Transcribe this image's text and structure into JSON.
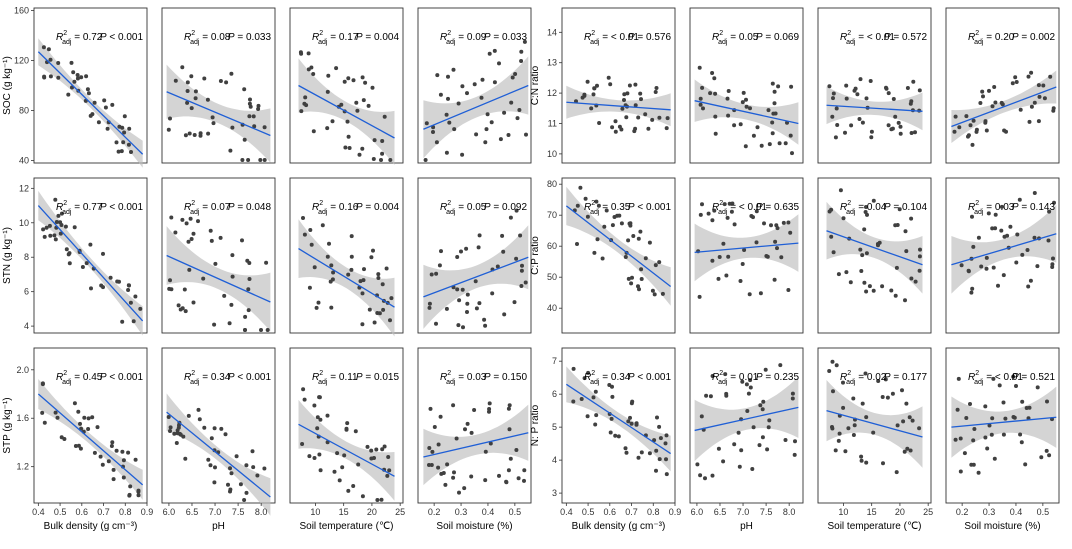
{
  "colors": {
    "line": "#1f5fd6",
    "band": "#bdbdbd",
    "point": "#404040",
    "frame": "#333333"
  },
  "x_axes": [
    {
      "key": "bd",
      "label": "Bulk density (g cm⁻³)",
      "lim": [
        0.38,
        0.9
      ],
      "ticks": [
        0.4,
        0.5,
        0.6,
        0.7,
        0.8,
        0.9
      ],
      "tick_labels": [
        "0.4",
        "0.5",
        "0.6",
        "0.7",
        "0.8",
        "0.9"
      ]
    },
    {
      "key": "ph",
      "label": "pH",
      "lim": [
        5.85,
        8.3
      ],
      "ticks": [
        6.0,
        6.5,
        7.0,
        7.5,
        8.0
      ],
      "tick_labels": [
        "6.0",
        "6.5",
        "7.0",
        "7.5",
        "8.0"
      ]
    },
    {
      "key": "st",
      "label": "Soil temperature (℃)",
      "lim": [
        5.5,
        25.5
      ],
      "ticks": [
        10,
        15,
        20,
        25
      ],
      "tick_labels": [
        "10",
        "15",
        "20",
        "25"
      ]
    },
    {
      "key": "sm",
      "label": "Soil moisture (%)",
      "lim": [
        0.14,
        0.56
      ],
      "ticks": [
        0.2,
        0.3,
        0.4,
        0.5
      ],
      "tick_labels": [
        "0.2",
        "0.3",
        "0.4",
        "0.5"
      ]
    }
  ],
  "chart_data": [
    {
      "type": "scatter",
      "panel_group": "left",
      "row": 0,
      "ylabel": "SOC (g kg⁻¹)",
      "ylim": [
        38,
        162
      ],
      "yticks": [
        40,
        80,
        120,
        160
      ],
      "ytick_labels": [
        "40",
        "80",
        "120",
        "160"
      ],
      "panels": [
        {
          "x_axis": "bd",
          "r2": "0.72",
          "p": "P < 0.001",
          "fit": [
            [
              0.4,
              127
            ],
            [
              0.88,
              45
            ]
          ],
          "ci": 7,
          "seed": 11,
          "n": 42
        },
        {
          "x_axis": "ph",
          "r2": "0.08",
          "p": "P = 0.033",
          "fit": [
            [
              5.95,
              95
            ],
            [
              8.2,
              60
            ]
          ],
          "ci": 14,
          "seed": 12,
          "n": 42
        },
        {
          "x_axis": "st",
          "r2": "0.17",
          "p": "P = 0.004",
          "fit": [
            [
              7,
              100
            ],
            [
              24,
              58
            ]
          ],
          "ci": 14,
          "seed": 13,
          "n": 42
        },
        {
          "x_axis": "sm",
          "r2": "0.09",
          "p": "P = 0.033",
          "fit": [
            [
              0.16,
              65
            ],
            [
              0.55,
              100
            ]
          ],
          "ci": 15,
          "seed": 14,
          "n": 42
        }
      ]
    },
    {
      "type": "scatter",
      "panel_group": "left",
      "row": 1,
      "ylabel": "STN (g kg⁻¹)",
      "ylim": [
        3.6,
        12.6
      ],
      "yticks": [
        4,
        6,
        8,
        10,
        12
      ],
      "ytick_labels": [
        "4",
        "6",
        "8",
        "10",
        "12"
      ],
      "panels": [
        {
          "x_axis": "bd",
          "r2": "0.77",
          "p": "P < 0.001",
          "fit": [
            [
              0.4,
              11
            ],
            [
              0.88,
              4.3
            ]
          ],
          "ci": 0.55,
          "seed": 21,
          "n": 42
        },
        {
          "x_axis": "ph",
          "r2": "0.07",
          "p": "P = 0.048",
          "fit": [
            [
              5.95,
              8.1
            ],
            [
              8.2,
              5.4
            ]
          ],
          "ci": 1.1,
          "seed": 22,
          "n": 42
        },
        {
          "x_axis": "st",
          "r2": "0.16",
          "p": "P = 0.004",
          "fit": [
            [
              7,
              8.5
            ],
            [
              24,
              5.1
            ]
          ],
          "ci": 1.1,
          "seed": 23,
          "n": 42
        },
        {
          "x_axis": "sm",
          "r2": "0.05",
          "p": "P = 0.092",
          "fit": [
            [
              0.16,
              5.7
            ],
            [
              0.55,
              8.0
            ]
          ],
          "ci": 1.2,
          "seed": 24,
          "n": 42
        }
      ]
    },
    {
      "type": "scatter",
      "panel_group": "left",
      "row": 2,
      "ylabel": "STP (g kg⁻¹)",
      "ylim": [
        0.9,
        2.18
      ],
      "yticks": [
        1.2,
        1.6,
        2.0
      ],
      "ytick_labels": [
        "1.2",
        "1.6",
        "2.0"
      ],
      "panels": [
        {
          "x_axis": "bd",
          "r2": "0.45",
          "p": "P < 0.001",
          "fit": [
            [
              0.4,
              1.8
            ],
            [
              0.88,
              1.05
            ]
          ],
          "ci": 0.08,
          "seed": 31,
          "n": 42
        },
        {
          "x_axis": "ph",
          "r2": "0.34",
          "p": "P < 0.001",
          "fit": [
            [
              5.95,
              1.65
            ],
            [
              8.2,
              0.95
            ]
          ],
          "ci": 0.1,
          "seed": 32,
          "n": 42
        },
        {
          "x_axis": "st",
          "r2": "0.11",
          "p": "P = 0.015",
          "fit": [
            [
              7,
              1.55
            ],
            [
              24,
              1.12
            ]
          ],
          "ci": 0.13,
          "seed": 33,
          "n": 42
        },
        {
          "x_axis": "sm",
          "r2": "0.03",
          "p": "P = 0.150",
          "fit": [
            [
              0.16,
              1.28
            ],
            [
              0.55,
              1.48
            ]
          ],
          "ci": 0.15,
          "seed": 34,
          "n": 42
        }
      ]
    },
    {
      "type": "scatter",
      "panel_group": "right",
      "row": 0,
      "ylabel": "C:N ratio",
      "ylim": [
        9.7,
        14.8
      ],
      "yticks": [
        10,
        11,
        12,
        13,
        14
      ],
      "ytick_labels": [
        "10",
        "11",
        "12",
        "13",
        "14"
      ],
      "panels": [
        {
          "x_axis": "bd",
          "r2": "< 0.01",
          "p": "P = 0.576",
          "fit": [
            [
              0.4,
              11.7
            ],
            [
              0.88,
              11.45
            ]
          ],
          "ci": 0.35,
          "seed": 41,
          "n": 42
        },
        {
          "x_axis": "ph",
          "r2": "0.05",
          "p": "P = 0.069",
          "fit": [
            [
              5.95,
              11.75
            ],
            [
              8.2,
              11.0
            ]
          ],
          "ci": 0.45,
          "seed": 42,
          "n": 42
        },
        {
          "x_axis": "st",
          "r2": "< 0.01",
          "p": "P = 0.572",
          "fit": [
            [
              7,
              11.6
            ],
            [
              24,
              11.4
            ]
          ],
          "ci": 0.4,
          "seed": 43,
          "n": 42
        },
        {
          "x_axis": "sm",
          "r2": "0.20",
          "p": "P = 0.002",
          "fit": [
            [
              0.16,
              10.9
            ],
            [
              0.55,
              12.2
            ]
          ],
          "ci": 0.35,
          "seed": 44,
          "n": 42
        }
      ]
    },
    {
      "type": "scatter",
      "panel_group": "right",
      "row": 1,
      "ylabel": "C:P ratio",
      "ylim": [
        32,
        82
      ],
      "yticks": [
        40,
        50,
        60,
        70,
        80
      ],
      "ytick_labels": [
        "40",
        "50",
        "60",
        "70",
        "80"
      ],
      "panels": [
        {
          "x_axis": "bd",
          "r2": "0.35",
          "p": "P < 0.001",
          "fit": [
            [
              0.4,
              73
            ],
            [
              0.88,
              47
            ]
          ],
          "ci": 4,
          "seed": 51,
          "n": 42
        },
        {
          "x_axis": "ph",
          "r2": "< 0.01",
          "p": "P = 0.635",
          "fit": [
            [
              5.95,
              58
            ],
            [
              8.2,
              61
            ]
          ],
          "ci": 6,
          "seed": 52,
          "n": 42
        },
        {
          "x_axis": "st",
          "r2": "0.04",
          "p": "P = 0.104",
          "fit": [
            [
              7,
              65
            ],
            [
              24,
              54
            ]
          ],
          "ci": 6,
          "seed": 53,
          "n": 42
        },
        {
          "x_axis": "sm",
          "r2": "0.03",
          "p": "P = 0.143",
          "fit": [
            [
              0.16,
              54
            ],
            [
              0.55,
              64
            ]
          ],
          "ci": 6,
          "seed": 54,
          "n": 42
        }
      ]
    },
    {
      "type": "scatter",
      "panel_group": "right",
      "row": 2,
      "ylabel": "N: P ratio",
      "ylim": [
        2.7,
        7.4
      ],
      "yticks": [
        3,
        4,
        5,
        6,
        7
      ],
      "ytick_labels": [
        "3",
        "4",
        "5",
        "6",
        "7"
      ],
      "panels": [
        {
          "x_axis": "bd",
          "r2": "0.34",
          "p": "P < 0.001",
          "fit": [
            [
              0.4,
              6.3
            ],
            [
              0.88,
              4.2
            ]
          ],
          "ci": 0.35,
          "seed": 61,
          "n": 42
        },
        {
          "x_axis": "ph",
          "r2": "0.01",
          "p": "P = 0.235",
          "fit": [
            [
              5.95,
              4.9
            ],
            [
              8.2,
              5.6
            ]
          ],
          "ci": 0.6,
          "seed": 62,
          "n": 42
        },
        {
          "x_axis": "st",
          "r2": "0.02",
          "p": "P = 0.177",
          "fit": [
            [
              7,
              5.5
            ],
            [
              24,
              4.7
            ]
          ],
          "ci": 0.6,
          "seed": 63,
          "n": 42
        },
        {
          "x_axis": "sm",
          "r2": "< 0.01",
          "p": "P = 0.521",
          "fit": [
            [
              0.16,
              5.0
            ],
            [
              0.55,
              5.3
            ]
          ],
          "ci": 0.6,
          "seed": 64,
          "n": 42
        }
      ]
    }
  ]
}
